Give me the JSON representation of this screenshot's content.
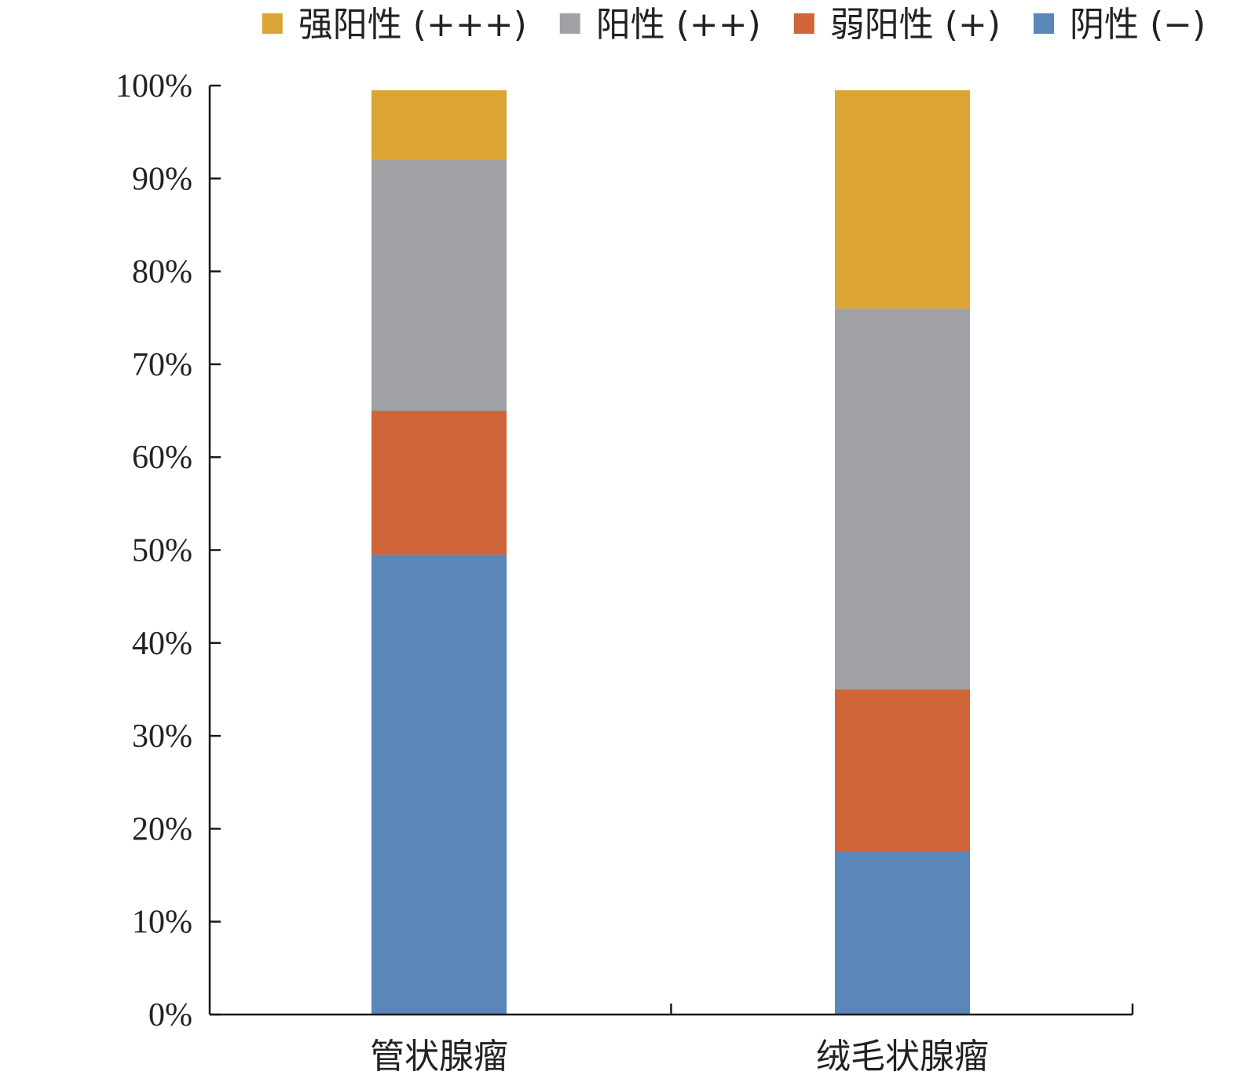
{
  "chart_data": {
    "type": "bar",
    "stacked": true,
    "categories": [
      "管状腺瘤",
      "绒毛状腺瘤"
    ],
    "series": [
      {
        "name": "阴性 (−)",
        "color": "#5b86b8",
        "values": [
          49.5,
          17.5
        ]
      },
      {
        "name": "弱阳性 (+)",
        "color": "#cf6538",
        "values": [
          15.5,
          17.5
        ]
      },
      {
        "name": "阳性 (++)",
        "color": "#a0a1a4",
        "values": [
          27.0,
          41.0
        ]
      },
      {
        "name": "强阳性 (+++)",
        "color": "#dca432",
        "values": [
          7.5,
          23.5
        ]
      }
    ],
    "legend_order": [
      "强阳性 (+++)",
      "阳性 (++)",
      "弱阳性 (+)",
      "阴性 (−)"
    ],
    "ylim": [
      0,
      100
    ],
    "yticks": [
      "0%",
      "10%",
      "20%",
      "30%",
      "40%",
      "50%",
      "60%",
      "70%",
      "80%",
      "90%",
      "100%"
    ],
    "legend_position": "top",
    "grid": false,
    "title": "",
    "xlabel": "",
    "ylabel": ""
  }
}
